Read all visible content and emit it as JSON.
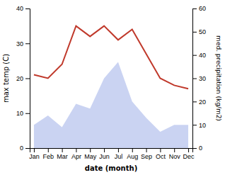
{
  "chart_data": {
    "type": "line",
    "xlabel": "date (month)",
    "ylabel": "max temp (C)",
    "y2label": "med. precipitation (kg/m2)",
    "categories": [
      "Jan",
      "Feb",
      "Mar",
      "Apr",
      "May",
      "Jun",
      "Jul",
      "Aug",
      "Sep",
      "Oct",
      "Nov",
      "Dec"
    ],
    "series": [
      {
        "type": "area",
        "axis": "y2",
        "color": "#b8c4ee",
        "values": [
          10,
          14,
          9,
          19,
          17,
          30,
          37,
          20,
          13,
          7,
          10,
          10
        ]
      },
      {
        "type": "line",
        "color": "#c0392b",
        "values": [
          21,
          20,
          24,
          35,
          32,
          35,
          31,
          34,
          27,
          20,
          18,
          17
        ]
      }
    ],
    "ylim": [
      0,
      40
    ],
    "yticks": [
      0,
      10,
      20,
      30,
      40
    ],
    "y2lim": [
      0,
      60
    ],
    "y2ticks": [
      0,
      10,
      20,
      30,
      40,
      50,
      60
    ],
    "grid": false
  }
}
